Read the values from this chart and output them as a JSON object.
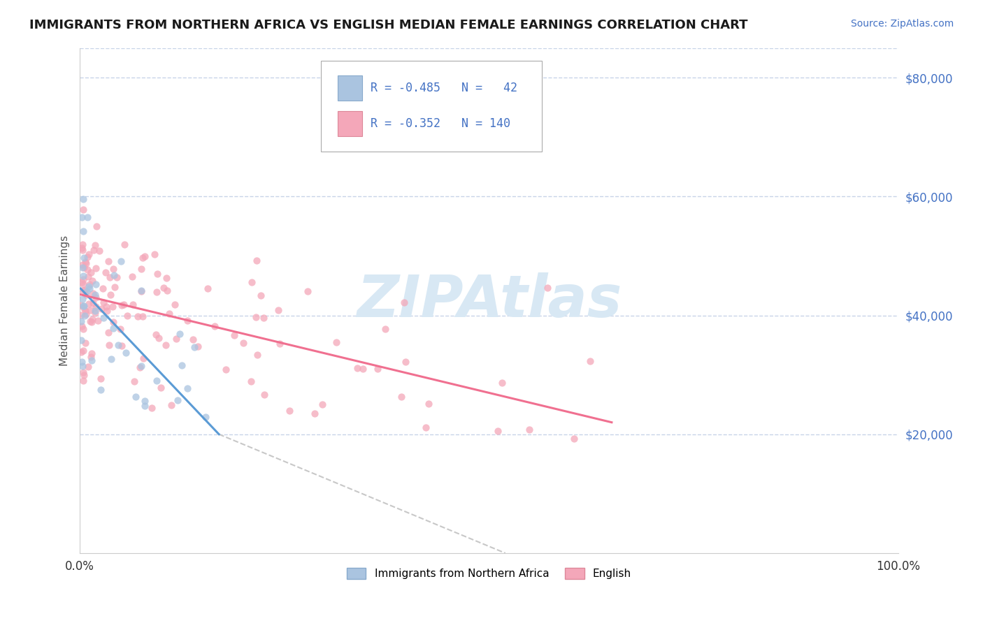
{
  "title": "IMMIGRANTS FROM NORTHERN AFRICA VS ENGLISH MEDIAN FEMALE EARNINGS CORRELATION CHART",
  "source_text": "Source: ZipAtlas.com",
  "ylabel": "Median Female Earnings",
  "xlim": [
    0.0,
    1.0
  ],
  "ylim": [
    0,
    85000
  ],
  "xtick_positions": [
    0.0,
    1.0
  ],
  "xtick_labels": [
    "0.0%",
    "100.0%"
  ],
  "ytick_values": [
    20000,
    40000,
    60000,
    80000
  ],
  "ytick_labels": [
    "$20,000",
    "$40,000",
    "$60,000",
    "$80,000"
  ],
  "background_color": "#ffffff",
  "color_blue": "#aac4e0",
  "color_pink": "#f4a7b9",
  "line_blue": "#5b9bd5",
  "line_pink": "#f07090",
  "line_dashed": "#c8c8c8",
  "grid_color": "#c8d4e8",
  "watermark_color": "#d8e8f4",
  "title_color": "#1a1a1a",
  "source_color": "#4472c4",
  "ylabel_color": "#555555",
  "ytick_color": "#4472c4",
  "xtick_color": "#333333",
  "legend_text_color": "#4472c4",
  "legend_r1": "R = -0.485",
  "legend_n1": "N =  42",
  "legend_r2": "R = -0.352",
  "legend_n2": "N = 140",
  "blue_line_x0": 0.001,
  "blue_line_y0": 44500,
  "blue_line_x1": 0.17,
  "blue_line_y1": 20000,
  "pink_line_x0": 0.001,
  "pink_line_y0": 43500,
  "pink_line_x1": 0.65,
  "pink_line_y1": 22000,
  "dash_line_x0": 0.17,
  "dash_line_y0": 20000,
  "dash_line_x1": 0.52,
  "dash_line_y1": 0
}
